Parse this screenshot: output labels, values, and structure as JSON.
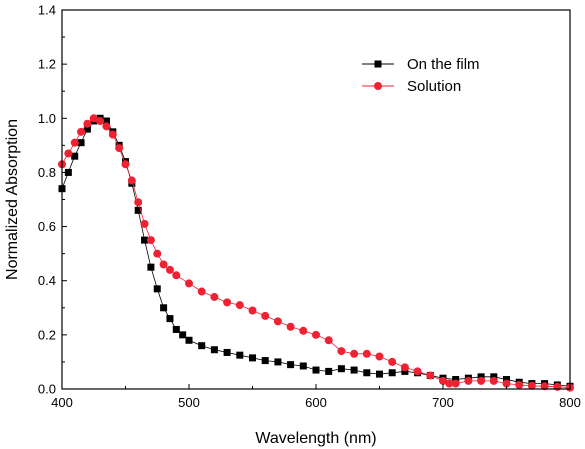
{
  "chart_data": {
    "type": "scatter",
    "title": "",
    "xlabel": "Wavelength (nm)",
    "ylabel": "Normalized Absorption",
    "xlim": [
      400,
      800
    ],
    "ylim": [
      0.0,
      1.4
    ],
    "xticks": [
      "400",
      "500",
      "600",
      "700",
      "800"
    ],
    "yticks": [
      "0.0",
      "0.2",
      "0.4",
      "0.6",
      "0.8",
      "1.0",
      "1.2",
      "1.4"
    ],
    "grid": false,
    "legend_position": "top-right",
    "series": [
      {
        "name": "On the film",
        "color": "#000000",
        "marker": "square",
        "points": [
          [
            400,
            0.74
          ],
          [
            405,
            0.8
          ],
          [
            410,
            0.86
          ],
          [
            415,
            0.91
          ],
          [
            420,
            0.96
          ],
          [
            425,
            0.99
          ],
          [
            430,
            1.0
          ],
          [
            435,
            0.99
          ],
          [
            440,
            0.95
          ],
          [
            445,
            0.9
          ],
          [
            450,
            0.84
          ],
          [
            455,
            0.76
          ],
          [
            460,
            0.66
          ],
          [
            465,
            0.55
          ],
          [
            470,
            0.45
          ],
          [
            475,
            0.37
          ],
          [
            480,
            0.3
          ],
          [
            485,
            0.26
          ],
          [
            490,
            0.22
          ],
          [
            495,
            0.2
          ],
          [
            500,
            0.18
          ],
          [
            510,
            0.16
          ],
          [
            520,
            0.145
          ],
          [
            530,
            0.135
          ],
          [
            540,
            0.125
          ],
          [
            550,
            0.115
          ],
          [
            560,
            0.105
          ],
          [
            570,
            0.1
          ],
          [
            580,
            0.09
          ],
          [
            590,
            0.085
          ],
          [
            600,
            0.07
          ],
          [
            610,
            0.065
          ],
          [
            620,
            0.075
          ],
          [
            630,
            0.07
          ],
          [
            640,
            0.06
          ],
          [
            650,
            0.055
          ],
          [
            660,
            0.06
          ],
          [
            670,
            0.065
          ],
          [
            680,
            0.06
          ],
          [
            690,
            0.05
          ],
          [
            700,
            0.04
          ],
          [
            710,
            0.035
          ],
          [
            720,
            0.04
          ],
          [
            730,
            0.045
          ],
          [
            740,
            0.045
          ],
          [
            750,
            0.035
          ],
          [
            760,
            0.025
          ],
          [
            770,
            0.02
          ],
          [
            780,
            0.02
          ],
          [
            790,
            0.015
          ],
          [
            800,
            0.01
          ]
        ]
      },
      {
        "name": "Solution",
        "color": "#ee2233",
        "marker": "circle",
        "points": [
          [
            400,
            0.83
          ],
          [
            405,
            0.87
          ],
          [
            410,
            0.91
          ],
          [
            415,
            0.95
          ],
          [
            420,
            0.98
          ],
          [
            425,
            1.0
          ],
          [
            430,
            0.99
          ],
          [
            435,
            0.97
          ],
          [
            440,
            0.94
          ],
          [
            445,
            0.89
          ],
          [
            450,
            0.83
          ],
          [
            455,
            0.77
          ],
          [
            460,
            0.69
          ],
          [
            465,
            0.61
          ],
          [
            470,
            0.55
          ],
          [
            475,
            0.5
          ],
          [
            480,
            0.46
          ],
          [
            485,
            0.44
          ],
          [
            490,
            0.42
          ],
          [
            500,
            0.39
          ],
          [
            510,
            0.36
          ],
          [
            520,
            0.34
          ],
          [
            530,
            0.32
          ],
          [
            540,
            0.31
          ],
          [
            550,
            0.29
          ],
          [
            560,
            0.27
          ],
          [
            570,
            0.25
          ],
          [
            580,
            0.23
          ],
          [
            590,
            0.215
          ],
          [
            600,
            0.2
          ],
          [
            610,
            0.18
          ],
          [
            620,
            0.14
          ],
          [
            630,
            0.13
          ],
          [
            640,
            0.13
          ],
          [
            650,
            0.12
          ],
          [
            660,
            0.1
          ],
          [
            670,
            0.08
          ],
          [
            680,
            0.065
          ],
          [
            690,
            0.05
          ],
          [
            700,
            0.03
          ],
          [
            705,
            0.02
          ],
          [
            710,
            0.02
          ],
          [
            720,
            0.03
          ],
          [
            730,
            0.03
          ],
          [
            740,
            0.03
          ],
          [
            750,
            0.02
          ],
          [
            760,
            0.015
          ],
          [
            770,
            0.012
          ],
          [
            780,
            0.01
          ],
          [
            790,
            0.008
          ],
          [
            800,
            0.005
          ]
        ]
      }
    ]
  }
}
